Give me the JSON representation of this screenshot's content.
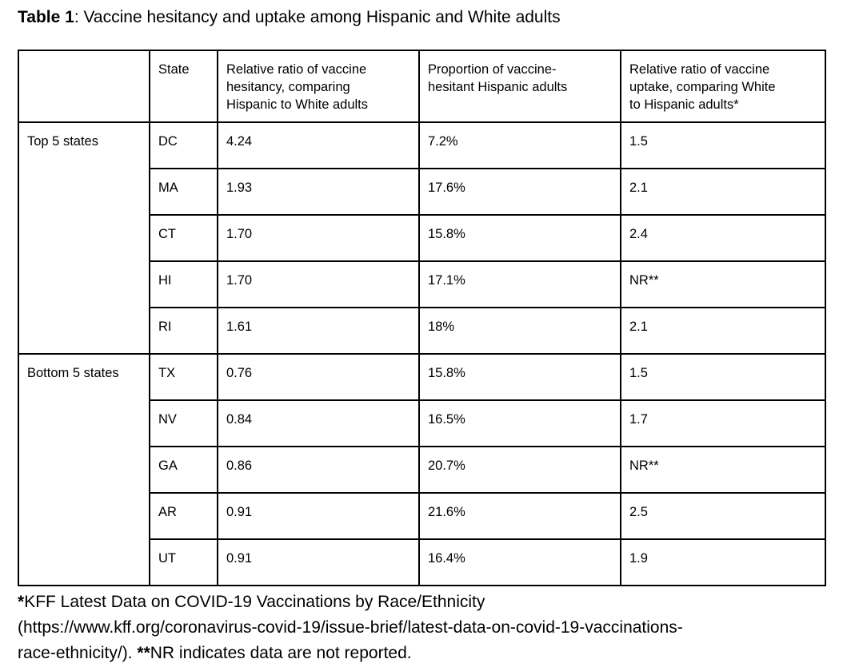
{
  "title": {
    "bold": "Table 1",
    "rest": ": Vaccine hesitancy and uptake among Hispanic and White adults"
  },
  "table": {
    "columns": [
      {
        "label": "",
        "lines": [
          ""
        ]
      },
      {
        "label": "State",
        "lines": [
          "State"
        ]
      },
      {
        "label": "Relative ratio of vaccine hesitancy, comparing Hispanic to White adults",
        "lines": [
          "Relative ratio of vaccine",
          "hesitancy, comparing",
          "Hispanic to White adults"
        ]
      },
      {
        "label": "Proportion of vaccine-hesitant Hispanic adults",
        "lines": [
          "Proportion of vaccine-",
          "hesitant Hispanic adults"
        ]
      },
      {
        "label": "Relative ratio of vaccine uptake, comparing White to Hispanic adults*",
        "lines": [
          "Relative ratio of vaccine",
          "uptake, comparing White",
          "to Hispanic adults*"
        ]
      }
    ],
    "groups": [
      {
        "label": "Top 5 states",
        "rows": [
          {
            "state": "DC",
            "hesitancy_ratio": "4.24",
            "proportion_hesitant": "7.2%",
            "uptake_ratio": "1.5"
          },
          {
            "state": "MA",
            "hesitancy_ratio": "1.93",
            "proportion_hesitant": "17.6%",
            "uptake_ratio": "2.1"
          },
          {
            "state": "CT",
            "hesitancy_ratio": "1.70",
            "proportion_hesitant": "15.8%",
            "uptake_ratio": "2.4"
          },
          {
            "state": "HI",
            "hesitancy_ratio": "1.70",
            "proportion_hesitant": "17.1%",
            "uptake_ratio": "NR**"
          },
          {
            "state": "RI",
            "hesitancy_ratio": "1.61",
            "proportion_hesitant": "18%",
            "uptake_ratio": "2.1"
          }
        ]
      },
      {
        "label": "Bottom 5 states",
        "rows": [
          {
            "state": "TX",
            "hesitancy_ratio": "0.76",
            "proportion_hesitant": "15.8%",
            "uptake_ratio": "1.5"
          },
          {
            "state": "NV",
            "hesitancy_ratio": "0.84",
            "proportion_hesitant": "16.5%",
            "uptake_ratio": "1.7"
          },
          {
            "state": "GA",
            "hesitancy_ratio": "0.86",
            "proportion_hesitant": "20.7%",
            "uptake_ratio": "NR**"
          },
          {
            "state": "AR",
            "hesitancy_ratio": "0.91",
            "proportion_hesitant": "21.6%",
            "uptake_ratio": "2.5"
          },
          {
            "state": "UT",
            "hesitancy_ratio": "0.91",
            "proportion_hesitant": "16.4%",
            "uptake_ratio": "1.9"
          }
        ]
      }
    ]
  },
  "footnote": {
    "star1": "*",
    "line1_rest": "KFF Latest Data on COVID-19 Vaccinations by Race/Ethnicity",
    "line2": "(https://www.kff.org/coronavirus-covid-19/issue-brief/latest-data-on-covid-19-vaccinations-",
    "line3_pre": "race-ethnicity/). ",
    "star2": "**",
    "line3_rest": "NR indicates data are not reported."
  }
}
